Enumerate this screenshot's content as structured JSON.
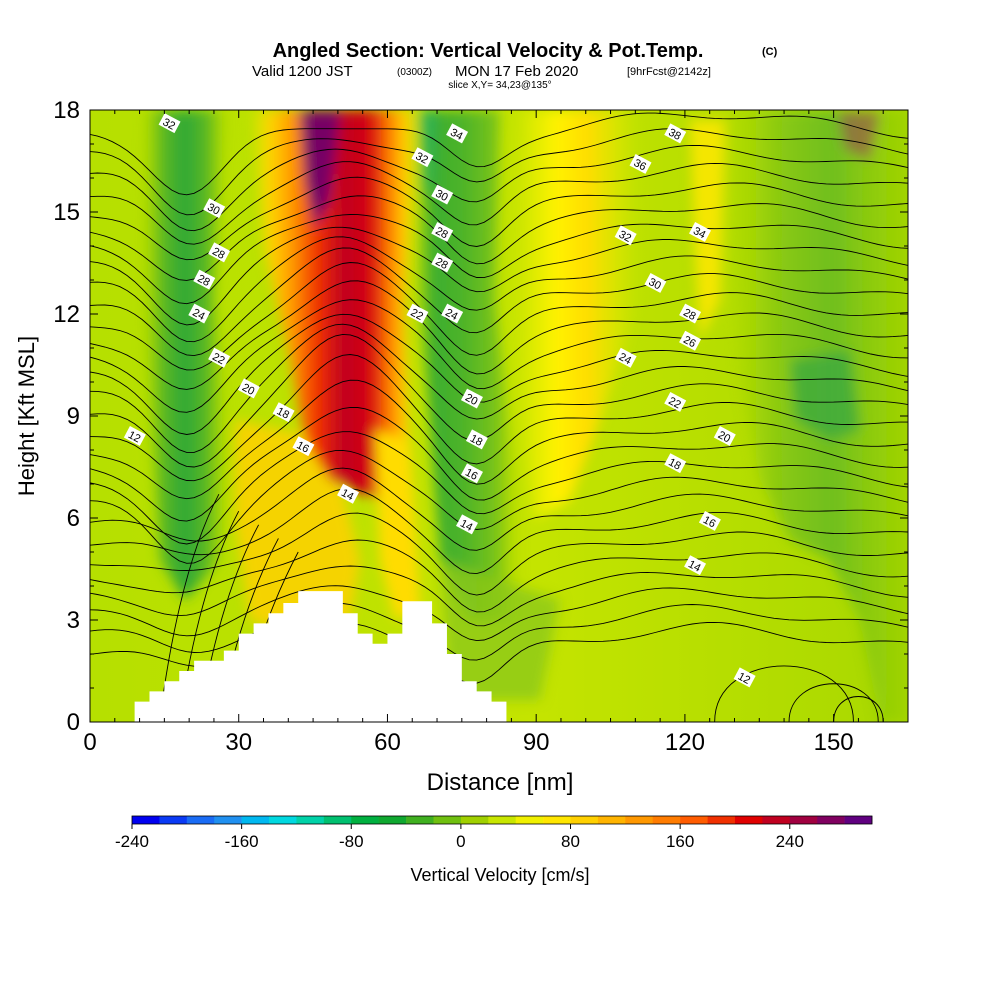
{
  "title": {
    "main": "Angled Section: Vertical Velocity & Pot.Temp.",
    "main_unit": "(C)",
    "valid_prefix": "Valid 1200 JST",
    "valid_small": "(0300Z)",
    "valid_date": "MON 17 Feb 2020",
    "valid_fcst": "[9hrFcst@2142z]",
    "slice": "slice X,Y= 34,23@135°"
  },
  "chart_data": {
    "type": "heatmap",
    "xlabel": "Distance [nm]",
    "ylabel": "Height [Kft MSL]",
    "xlim": [
      0,
      165
    ],
    "ylim": [
      0,
      18
    ],
    "x_ticks": [
      "0",
      "30",
      "60",
      "90",
      "120",
      "150"
    ],
    "x_tick_values": [
      0,
      30,
      60,
      90,
      120,
      150
    ],
    "y_ticks": [
      "0",
      "3",
      "6",
      "9",
      "12",
      "15",
      "18"
    ],
    "y_tick_values": [
      0,
      3,
      6,
      9,
      12,
      15,
      18
    ],
    "colorbar": {
      "label": "Vertical Velocity [cm/s]",
      "min": -240,
      "max": 300,
      "step": 20,
      "tick_labels": [
        "-240",
        "-160",
        "-80",
        "0",
        "80",
        "160",
        "240"
      ],
      "tick_values": [
        -240,
        -160,
        -80,
        0,
        80,
        160,
        240
      ],
      "colors": [
        "#0000f0",
        "#0a3af5",
        "#1a6cf5",
        "#2090f0",
        "#00b8f0",
        "#00d8e0",
        "#00d2a8",
        "#00c070",
        "#00b040",
        "#10a830",
        "#40b020",
        "#70c010",
        "#a0d000",
        "#c8e600",
        "#f0f000",
        "#ffe600",
        "#ffd000",
        "#ffb400",
        "#ff9800",
        "#ff7c00",
        "#ff5c00",
        "#f03000",
        "#e00000",
        "#c00020",
        "#a00040",
        "#800060",
        "#600080"
      ]
    },
    "terrain_profile": [
      [
        9,
        0.3
      ],
      [
        9,
        0.6
      ],
      [
        12,
        0.6
      ],
      [
        12,
        0.9
      ],
      [
        15,
        0.9
      ],
      [
        15,
        1.2
      ],
      [
        18,
        1.2
      ],
      [
        18,
        1.5
      ],
      [
        21,
        1.5
      ],
      [
        21,
        1.8
      ],
      [
        27,
        1.8
      ],
      [
        27,
        2.1
      ],
      [
        30,
        2.1
      ],
      [
        30,
        2.6
      ],
      [
        33,
        2.6
      ],
      [
        33,
        2.9
      ],
      [
        36,
        2.9
      ],
      [
        36,
        3.2
      ],
      [
        39,
        3.2
      ],
      [
        39,
        3.5
      ],
      [
        42,
        3.5
      ],
      [
        42,
        3.85
      ],
      [
        51,
        3.85
      ],
      [
        51,
        3.2
      ],
      [
        54,
        3.2
      ],
      [
        54,
        2.6
      ],
      [
        57,
        2.6
      ],
      [
        57,
        2.3
      ],
      [
        60,
        2.3
      ],
      [
        60,
        2.6
      ],
      [
        63,
        2.6
      ],
      [
        63,
        3.55
      ],
      [
        69,
        3.55
      ],
      [
        69,
        2.9
      ],
      [
        72,
        2.9
      ],
      [
        72,
        2.0
      ],
      [
        75,
        2.0
      ],
      [
        75,
        1.2
      ],
      [
        78,
        1.2
      ],
      [
        78,
        0.9
      ],
      [
        81,
        0.9
      ],
      [
        81,
        0.6
      ],
      [
        84,
        0.6
      ],
      [
        84,
        0.3
      ]
    ],
    "vertical_velocity_features": [
      {
        "center_nm": 48,
        "top_kft": 18,
        "bottom_kft": 7.5,
        "max_cm_s": 280,
        "kind": "updraft"
      },
      {
        "center_nm": 40,
        "top_kft": 9,
        "bottom_kft": 3,
        "max_cm_s": 120,
        "kind": "updraft"
      },
      {
        "center_nm": 63,
        "top_kft": 18,
        "bottom_kft": 3.5,
        "max_cm_s": 40,
        "kind": "updraft"
      },
      {
        "center_nm": 100,
        "top_kft": 18,
        "bottom_kft": 6,
        "max_cm_s": 60,
        "kind": "updraft"
      },
      {
        "center_nm": 20,
        "top_kft": 18,
        "bottom_kft": 4.5,
        "max_cm_s": -80,
        "kind": "downdraft"
      },
      {
        "center_nm": 72,
        "top_kft": 18,
        "bottom_kft": 2.5,
        "max_cm_s": -80,
        "kind": "downdraft"
      },
      {
        "center_nm": 145,
        "top_kft": 18,
        "bottom_kft": 0.5,
        "max_cm_s": -50,
        "kind": "downdraft"
      }
    ],
    "isotherm_labels": [
      {
        "label": "32",
        "x_nm": 16,
        "y_kft": 17.6
      },
      {
        "label": "30",
        "x_nm": 25,
        "y_kft": 15.1
      },
      {
        "label": "28",
        "x_nm": 26,
        "y_kft": 13.8
      },
      {
        "label": "28",
        "x_nm": 23,
        "y_kft": 13.0
      },
      {
        "label": "24",
        "x_nm": 22,
        "y_kft": 12.0
      },
      {
        "label": "22",
        "x_nm": 26,
        "y_kft": 10.7
      },
      {
        "label": "20",
        "x_nm": 32,
        "y_kft": 9.8
      },
      {
        "label": "18",
        "x_nm": 39,
        "y_kft": 9.1
      },
      {
        "label": "16",
        "x_nm": 43,
        "y_kft": 8.1
      },
      {
        "label": "14",
        "x_nm": 52,
        "y_kft": 6.7
      },
      {
        "label": "12",
        "x_nm": 9,
        "y_kft": 8.4
      },
      {
        "label": "22",
        "x_nm": 66,
        "y_kft": 12.0
      },
      {
        "label": "34",
        "x_nm": 74,
        "y_kft": 17.3
      },
      {
        "label": "32",
        "x_nm": 67,
        "y_kft": 16.6
      },
      {
        "label": "30",
        "x_nm": 71,
        "y_kft": 15.5
      },
      {
        "label": "28",
        "x_nm": 71,
        "y_kft": 14.4
      },
      {
        "label": "28",
        "x_nm": 71,
        "y_kft": 13.5
      },
      {
        "label": "24",
        "x_nm": 73,
        "y_kft": 12.0
      },
      {
        "label": "20",
        "x_nm": 77,
        "y_kft": 9.5
      },
      {
        "label": "18",
        "x_nm": 78,
        "y_kft": 8.3
      },
      {
        "label": "16",
        "x_nm": 77,
        "y_kft": 7.3
      },
      {
        "label": "14",
        "x_nm": 76,
        "y_kft": 5.8
      },
      {
        "label": "38",
        "x_nm": 118,
        "y_kft": 17.3
      },
      {
        "label": "36",
        "x_nm": 111,
        "y_kft": 16.4
      },
      {
        "label": "34",
        "x_nm": 123,
        "y_kft": 14.4
      },
      {
        "label": "32",
        "x_nm": 108,
        "y_kft": 14.3
      },
      {
        "label": "30",
        "x_nm": 114,
        "y_kft": 12.9
      },
      {
        "label": "28",
        "x_nm": 121,
        "y_kft": 12.0
      },
      {
        "label": "26",
        "x_nm": 121,
        "y_kft": 11.2
      },
      {
        "label": "24",
        "x_nm": 108,
        "y_kft": 10.7
      },
      {
        "label": "22",
        "x_nm": 118,
        "y_kft": 9.4
      },
      {
        "label": "20",
        "x_nm": 128,
        "y_kft": 8.4
      },
      {
        "label": "18",
        "x_nm": 118,
        "y_kft": 7.6
      },
      {
        "label": "16",
        "x_nm": 125,
        "y_kft": 5.9
      },
      {
        "label": "14",
        "x_nm": 122,
        "y_kft": 4.6
      },
      {
        "label": "12",
        "x_nm": 132,
        "y_kft": 1.3
      }
    ]
  }
}
